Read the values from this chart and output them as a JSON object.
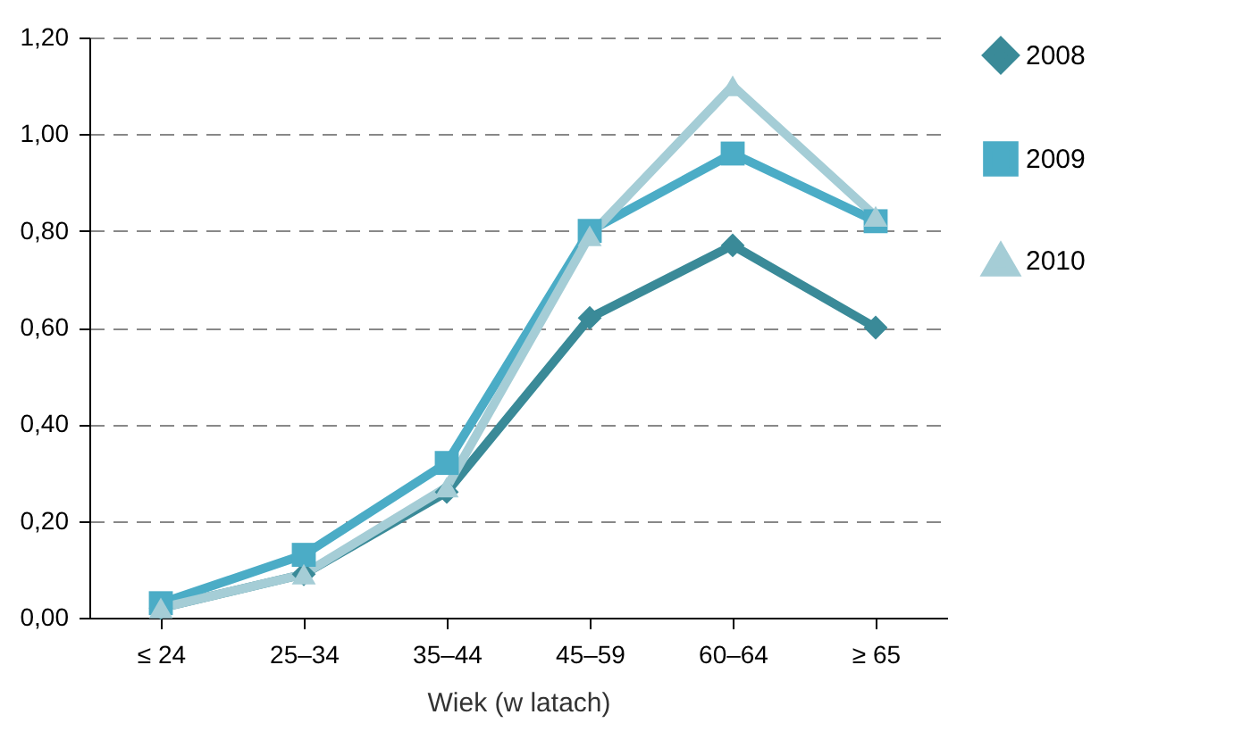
{
  "chart_data": {
    "type": "line",
    "xlabel": "Wiek (w latach)",
    "categories": [
      "≤ 24",
      "25–34",
      "35–44",
      "45–59",
      "60–64",
      "≥ 65"
    ],
    "series": [
      {
        "name": "2008",
        "color": "#3a8a98",
        "marker": "diamond",
        "values": [
          0.02,
          0.09,
          0.26,
          0.62,
          0.77,
          0.6
        ]
      },
      {
        "name": "2009",
        "color": "#4bacc6",
        "marker": "square",
        "values": [
          0.03,
          0.13,
          0.32,
          0.8,
          0.96,
          0.82
        ]
      },
      {
        "name": "2010",
        "color": "#a5cdd6",
        "marker": "triangle",
        "values": [
          0.02,
          0.09,
          0.27,
          0.79,
          1.1,
          0.83
        ]
      }
    ],
    "ylim": [
      0,
      1.2
    ],
    "yticks": [
      {
        "value": 0,
        "label": "0,00"
      },
      {
        "value": 0.2,
        "label": "0,20"
      },
      {
        "value": 0.4,
        "label": "0,40"
      },
      {
        "value": 0.6,
        "label": "0,60"
      },
      {
        "value": 0.8,
        "label": "0,80"
      },
      {
        "value": 1.0,
        "label": "1,00"
      },
      {
        "value": 1.2,
        "label": "1,20"
      }
    ],
    "grid": "y",
    "legend": "right",
    "line_style": "solid"
  }
}
